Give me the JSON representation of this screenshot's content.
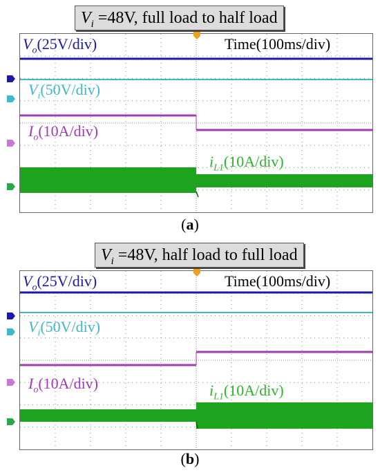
{
  "chart_data": [
    {
      "type": "line",
      "panel": "a",
      "title_prefix": "V",
      "title_sub": "i",
      "title_rest": " =48V, full load to half load",
      "time_label": "Time(100ms/div)",
      "caption": "a",
      "series": [
        {
          "name_var": "V",
          "name_sub": "o",
          "name_scale": "(25V/div)",
          "color": "#1a1aa6"
        },
        {
          "name_var": "V",
          "name_sub": "i",
          "name_scale": "(50V/div)",
          "color": "#3fb8c8"
        },
        {
          "name_var": "I",
          "name_sub": "o",
          "name_scale": "(10A/div)",
          "color": "#a23ab4"
        },
        {
          "name_var": "i",
          "name_sub": "L1",
          "name_scale": "(10A/div)",
          "color": "#1fa81f"
        }
      ]
    },
    {
      "type": "line",
      "panel": "b",
      "title_prefix": "V",
      "title_sub": "i",
      "title_rest": " =48V, half load to full load",
      "time_label": "Time(100ms/div)",
      "caption": "b",
      "series": [
        {
          "name_var": "V",
          "name_sub": "o",
          "name_scale": "(25V/div)",
          "color": "#1a1aa6"
        },
        {
          "name_var": "V",
          "name_sub": "i",
          "name_scale": "(50V/div)",
          "color": "#3fb8c8"
        },
        {
          "name_var": "I",
          "name_sub": "o",
          "name_scale": "(10A/div)",
          "color": "#a23ab4"
        },
        {
          "name_var": "i",
          "name_sub": "L1",
          "name_scale": "(10A/div)",
          "color": "#1fa81f"
        }
      ]
    }
  ]
}
